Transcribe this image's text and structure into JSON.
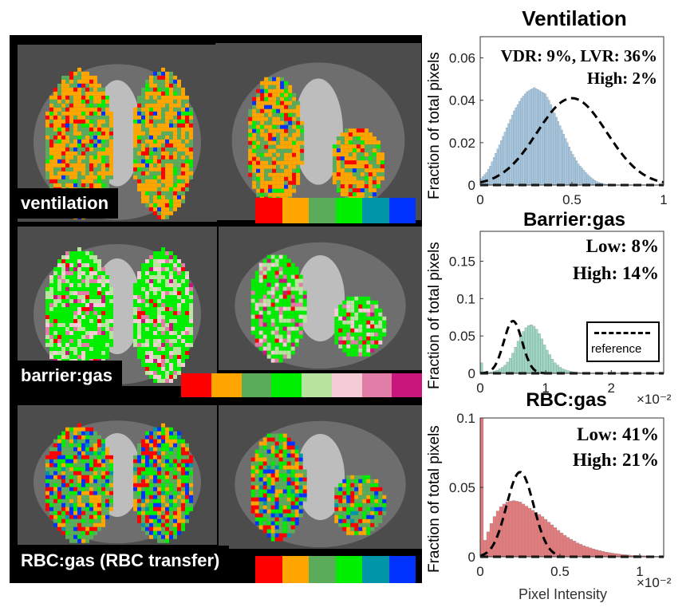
{
  "panels": [
    {
      "label": "ventilation",
      "colorbar": [
        "#ff0000",
        "#ffa500",
        "#5aab5a",
        "#00ee00",
        "#0096a8",
        "#0033ff"
      ]
    },
    {
      "label": "barrier:gas",
      "colorbar": [
        "#ff0000",
        "#ffa500",
        "#5aab5a",
        "#00ee00",
        "#b8e4a0",
        "#f4ccd6",
        "#e07ea8",
        "#c8167c"
      ]
    },
    {
      "label": "RBC:gas (RBC transfer)",
      "colorbar": [
        "#ff0000",
        "#ffa500",
        "#5aab5a",
        "#00ee00",
        "#0096a8",
        "#0033ff"
      ]
    }
  ],
  "chart_data": [
    {
      "type": "bar",
      "title": "Ventilation",
      "ylabel": "Fraction of total pixels",
      "xlabel": "",
      "x_multiplier": "",
      "xlim": [
        0,
        1
      ],
      "ylim": [
        0,
        0.07
      ],
      "xticks": [
        "0",
        "0.5",
        "1"
      ],
      "yticks": [
        "0",
        "0.02",
        "0.04",
        "0.06"
      ],
      "annotations": [
        "VDR: 9%, LVR: 36%",
        "High: 2%"
      ],
      "histogram": {
        "x_start": 0.0,
        "bin_width": 0.01,
        "color": "#a9c9e2",
        "values": [
          0.003,
          0.004,
          0.005,
          0.006,
          0.0075,
          0.009,
          0.011,
          0.013,
          0.015,
          0.017,
          0.019,
          0.021,
          0.023,
          0.025,
          0.027,
          0.029,
          0.031,
          0.033,
          0.035,
          0.0365,
          0.038,
          0.0395,
          0.041,
          0.042,
          0.043,
          0.044,
          0.0445,
          0.045,
          0.0455,
          0.046,
          0.0455,
          0.045,
          0.0445,
          0.044,
          0.0435,
          0.043,
          0.0415,
          0.04,
          0.038,
          0.036,
          0.034,
          0.032,
          0.03,
          0.028,
          0.026,
          0.024,
          0.022,
          0.02,
          0.018,
          0.016,
          0.0145,
          0.013,
          0.0115,
          0.01,
          0.009,
          0.008,
          0.007,
          0.006,
          0.005,
          0.0042,
          0.0035,
          0.0028,
          0.0022,
          0.0017,
          0.0013,
          0.001,
          0.0008,
          0.0006,
          0.0004,
          0.0003,
          0.0002,
          0.0001
        ]
      },
      "reference": {
        "peak_x": 0.5,
        "peak_y": 0.041,
        "sigma": 0.19,
        "start_x": 0.0,
        "end_x": 1.0
      },
      "legend": ""
    },
    {
      "type": "bar",
      "title": "Barrier:gas",
      "ylabel": "Fraction of total pixels",
      "xlabel": "",
      "x_multiplier": "×10⁻²",
      "xlim": [
        0,
        2.8
      ],
      "ylim": [
        0,
        0.19
      ],
      "xticks": [
        "0",
        "1",
        "2"
      ],
      "yticks": [
        "0",
        "0.05",
        "0.1",
        "0.15"
      ],
      "annotations": [
        "Low: 8%",
        "High: 14%"
      ],
      "histogram": {
        "x_start": 0.0,
        "bin_width": 0.04,
        "color": "#9fd6c2",
        "values": [
          0.014,
          0.001,
          0.001,
          0.0015,
          0.002,
          0.003,
          0.004,
          0.006,
          0.008,
          0.011,
          0.015,
          0.02,
          0.027,
          0.035,
          0.043,
          0.05,
          0.056,
          0.061,
          0.064,
          0.065,
          0.063,
          0.059,
          0.053,
          0.046,
          0.038,
          0.031,
          0.025,
          0.019,
          0.014,
          0.011,
          0.008,
          0.006,
          0.0045,
          0.0035,
          0.0027,
          0.002,
          0.0016,
          0.0013,
          0.001,
          0.0008,
          0.0006,
          0.0005,
          0.0004,
          0.0003,
          0.0002,
          0.0002,
          0.0001
        ]
      },
      "reference": {
        "peak_x": 0.5,
        "peak_y": 0.07,
        "sigma": 0.14,
        "start_x": 0.0,
        "end_x": 1.1
      },
      "legend": "reference"
    },
    {
      "type": "bar",
      "title": "RBC:gas",
      "ylabel": "Fraction of total pixels",
      "xlabel": "Pixel Intensity",
      "x_multiplier": "×10⁻²",
      "xlim": [
        0,
        1.15
      ],
      "ylim": [
        0,
        0.1
      ],
      "xticks": [
        "0",
        "0.5",
        "1"
      ],
      "yticks": [
        "0",
        "0.05",
        "0.1"
      ],
      "annotations": [
        "Low: 41%",
        "High: 21%"
      ],
      "histogram": {
        "x_start": 0.0,
        "bin_width": 0.02,
        "color": "#e77b7b",
        "values": [
          0.1,
          0.012,
          0.018,
          0.024,
          0.029,
          0.033,
          0.036,
          0.038,
          0.0395,
          0.04,
          0.0405,
          0.04,
          0.0395,
          0.038,
          0.0365,
          0.035,
          0.0335,
          0.032,
          0.0305,
          0.029,
          0.027,
          0.025,
          0.023,
          0.021,
          0.019,
          0.0172,
          0.0155,
          0.014,
          0.0126,
          0.0113,
          0.01,
          0.009,
          0.008,
          0.0072,
          0.0064,
          0.0057,
          0.005,
          0.0044,
          0.0039,
          0.0034,
          0.003,
          0.0026,
          0.0023,
          0.002,
          0.0017,
          0.0015,
          0.0013,
          0.0011,
          0.001,
          0.0009,
          0.0008,
          0.0007,
          0.0006,
          0.0005,
          0.0004,
          0.0003,
          0.0002,
          0.0001
        ]
      },
      "reference": {
        "peak_x": 0.25,
        "peak_y": 0.061,
        "sigma": 0.085,
        "start_x": 0.0,
        "end_x": 0.5
      },
      "legend": ""
    }
  ]
}
